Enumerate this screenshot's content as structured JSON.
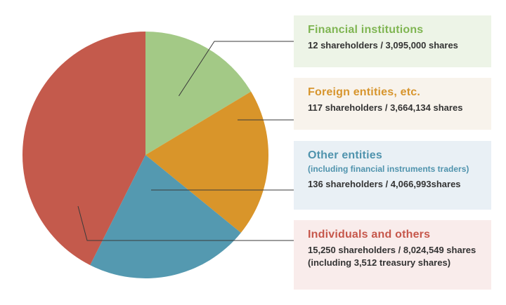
{
  "chart_data": {
    "type": "pie",
    "slices": [
      {
        "title": "Financial institutions",
        "shareholders": "12 shareholders / 3,095,000 shares",
        "value": 3095000,
        "color": "#a3c986",
        "bg": "#edf4e7"
      },
      {
        "title": "Foreign entities, etc.",
        "shareholders": "117 shareholders / 3,664,134 shares",
        "value": 3664134,
        "color": "#d9952a",
        "bg": "#f8f3ec"
      },
      {
        "title": "Other entities",
        "subtitle": "(including financial instruments traders)",
        "shareholders": "136 shareholders / 4,066,993shares",
        "value": 4066993,
        "color": "#5499b0",
        "bg": "#e9f0f5"
      },
      {
        "title": "Individuals and others",
        "shareholders": "15,250 shareholders / 8,024,549 shares",
        "note": "(including 3,512 treasury shares)",
        "value": 8024549,
        "color": "#c45a4c",
        "bg": "#f9eceb"
      }
    ]
  },
  "colors": {
    "title_financial": "#7fb552",
    "title_foreign": "#d7952d",
    "title_other": "#4f93ad",
    "title_individuals": "#c6574b"
  }
}
